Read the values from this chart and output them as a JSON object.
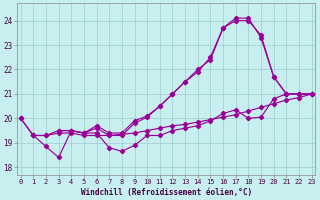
{
  "bg_color": "#c8eff0",
  "line_color": "#990099",
  "grid_color": "#a0cccc",
  "xlabel": "Windchill (Refroidissement éolien,°C)",
  "yticks": [
    18,
    19,
    20,
    21,
    22,
    23,
    24
  ],
  "xticks": [
    0,
    1,
    2,
    3,
    4,
    5,
    6,
    7,
    8,
    9,
    10,
    11,
    12,
    13,
    14,
    15,
    16,
    17,
    18,
    19,
    20,
    21,
    22,
    23
  ],
  "ylim": [
    17.7,
    24.7
  ],
  "xlim": [
    -0.3,
    23.3
  ],
  "line1_x": [
    0,
    1,
    2,
    3,
    4,
    5,
    6,
    7,
    8,
    9,
    10,
    11,
    12,
    13,
    14,
    15,
    16,
    17,
    18,
    19,
    20,
    21,
    22,
    23
  ],
  "line1_y": [
    20.0,
    19.3,
    18.85,
    18.4,
    19.5,
    19.4,
    19.4,
    18.8,
    18.65,
    18.9,
    19.3,
    19.3,
    19.5,
    19.6,
    19.7,
    19.9,
    20.2,
    20.35,
    20.0,
    20.05,
    20.8,
    21.0,
    21.0,
    21.0
  ],
  "line2_x": [
    0,
    1,
    2,
    3,
    4,
    5,
    6,
    7,
    8,
    9,
    10,
    11,
    12,
    13,
    14,
    15,
    16,
    17,
    18,
    19,
    20,
    21,
    22,
    23
  ],
  "line2_y": [
    20.0,
    19.3,
    19.3,
    19.5,
    19.5,
    19.4,
    19.6,
    19.3,
    19.3,
    19.8,
    20.05,
    20.5,
    21.0,
    21.5,
    21.9,
    22.5,
    23.7,
    24.1,
    24.1,
    23.3,
    21.7,
    21.0,
    21.0,
    21.0
  ],
  "line3_x": [
    3,
    4,
    5,
    6,
    7,
    8,
    9,
    10,
    11,
    12,
    13,
    14,
    15,
    16,
    17,
    18,
    19,
    20,
    21,
    22,
    23
  ],
  "line3_y": [
    19.5,
    19.5,
    19.4,
    19.7,
    19.4,
    19.4,
    19.9,
    20.1,
    20.5,
    21.0,
    21.5,
    22.0,
    22.4,
    23.7,
    24.0,
    24.0,
    23.4,
    21.7,
    21.0,
    21.0,
    21.0
  ],
  "line4_x": [
    1,
    2,
    3,
    4,
    5,
    6,
    7,
    8,
    9,
    10,
    11,
    12,
    13,
    14,
    15,
    16,
    17,
    18,
    19,
    20,
    21,
    22,
    23
  ],
  "line4_y": [
    19.3,
    19.3,
    19.4,
    19.4,
    19.3,
    19.3,
    19.3,
    19.35,
    19.4,
    19.5,
    19.6,
    19.7,
    19.75,
    19.85,
    19.95,
    20.05,
    20.15,
    20.3,
    20.45,
    20.6,
    20.75,
    20.85,
    21.0
  ]
}
